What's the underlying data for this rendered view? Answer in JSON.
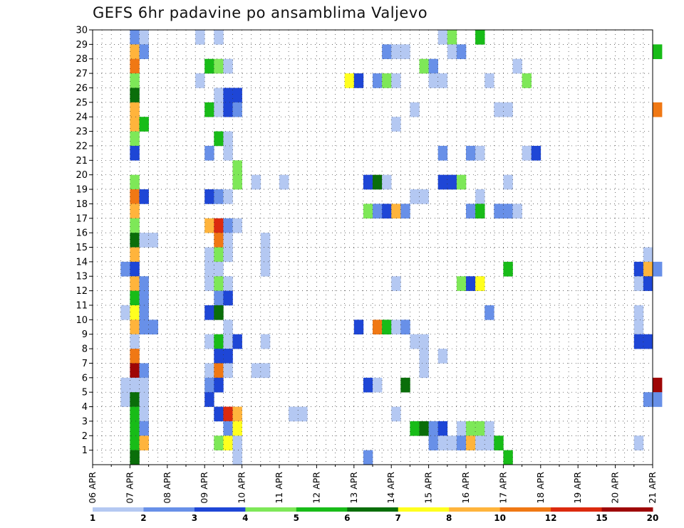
{
  "chart_data": {
    "type": "heatmap",
    "title": "GEFS 6hr padavine po ansamblima Valjevo",
    "x_tick_labels": [
      "06 APR",
      "07 APR",
      "08 APR",
      "09 APR",
      "10 APR",
      "11 APR",
      "12 APR",
      "13 APR",
      "14 APR",
      "15 APR",
      "16 APR",
      "17 APR",
      "18 APR",
      "19 APR",
      "20 APR",
      "21 APR"
    ],
    "y_tick_labels": [
      "1",
      "2",
      "3",
      "4",
      "5",
      "6",
      "7",
      "8",
      "9",
      "10",
      "11",
      "12",
      "13",
      "14",
      "15",
      "16",
      "17",
      "18",
      "19",
      "20",
      "21",
      "22",
      "23",
      "24",
      "25",
      "26",
      "27",
      "28",
      "29",
      "30"
    ],
    "y_range": [
      0,
      30
    ],
    "x_range": [
      0,
      60
    ],
    "grid": true,
    "colorbar": {
      "labels": [
        "1",
        "2",
        "3",
        "4",
        "5",
        "6",
        "7",
        "8",
        "10",
        "12",
        "15",
        "20"
      ],
      "colors": [
        "#b4c8f2",
        "#6890e8",
        "#1e46d6",
        "#7ee858",
        "#18bc18",
        "#0a6e0a",
        "#ffff1e",
        "#ffb43c",
        "#f07814",
        "#dc2a0e",
        "#9e0606"
      ]
    },
    "cells": [
      [
        4,
        30,
        1
      ],
      [
        5,
        30,
        0
      ],
      [
        11,
        30,
        0
      ],
      [
        13,
        30,
        0
      ],
      [
        37,
        30,
        0
      ],
      [
        38,
        30,
        3
      ],
      [
        41,
        30,
        4
      ],
      [
        4,
        29,
        7
      ],
      [
        5,
        29,
        1
      ],
      [
        31,
        29,
        1
      ],
      [
        32,
        29,
        0
      ],
      [
        33,
        29,
        0
      ],
      [
        38,
        29,
        0
      ],
      [
        39,
        29,
        1
      ],
      [
        60,
        29,
        4
      ],
      [
        4,
        28,
        8
      ],
      [
        12,
        28,
        4
      ],
      [
        13,
        28,
        3
      ],
      [
        14,
        28,
        0
      ],
      [
        35,
        28,
        3
      ],
      [
        36,
        28,
        1
      ],
      [
        45,
        28,
        0
      ],
      [
        4,
        27,
        3
      ],
      [
        11,
        27,
        0
      ],
      [
        27,
        27,
        6
      ],
      [
        28,
        27,
        2
      ],
      [
        30,
        27,
        1
      ],
      [
        31,
        27,
        3
      ],
      [
        32,
        27,
        0
      ],
      [
        36,
        27,
        0
      ],
      [
        37,
        27,
        0
      ],
      [
        42,
        27,
        0
      ],
      [
        46,
        27,
        3
      ],
      [
        4,
        26,
        5
      ],
      [
        13,
        26,
        0
      ],
      [
        14,
        26,
        2
      ],
      [
        15,
        26,
        2
      ],
      [
        4,
        25,
        7
      ],
      [
        12,
        25,
        4
      ],
      [
        13,
        25,
        0
      ],
      [
        14,
        25,
        2
      ],
      [
        15,
        25,
        1
      ],
      [
        34,
        25,
        0
      ],
      [
        43,
        25,
        0
      ],
      [
        44,
        25,
        0
      ],
      [
        60,
        25,
        8
      ],
      [
        4,
        24,
        7
      ],
      [
        5,
        24,
        4
      ],
      [
        32,
        24,
        0
      ],
      [
        4,
        23,
        3
      ],
      [
        13,
        23,
        4
      ],
      [
        14,
        23,
        0
      ],
      [
        4,
        22,
        2
      ],
      [
        12,
        22,
        1
      ],
      [
        14,
        22,
        0
      ],
      [
        37,
        22,
        1
      ],
      [
        40,
        22,
        1
      ],
      [
        41,
        22,
        0
      ],
      [
        46,
        22,
        0
      ],
      [
        47,
        22,
        2
      ],
      [
        15,
        21,
        3
      ],
      [
        4,
        20,
        3
      ],
      [
        15,
        20,
        3
      ],
      [
        17,
        20,
        0
      ],
      [
        20,
        20,
        0
      ],
      [
        29,
        20,
        2
      ],
      [
        30,
        20,
        5
      ],
      [
        31,
        20,
        0
      ],
      [
        37,
        20,
        2
      ],
      [
        38,
        20,
        2
      ],
      [
        39,
        20,
        3
      ],
      [
        44,
        20,
        0
      ],
      [
        4,
        19,
        8
      ],
      [
        5,
        19,
        2
      ],
      [
        12,
        19,
        2
      ],
      [
        13,
        19,
        1
      ],
      [
        14,
        19,
        0
      ],
      [
        34,
        19,
        0
      ],
      [
        35,
        19,
        0
      ],
      [
        41,
        19,
        0
      ],
      [
        4,
        18,
        7
      ],
      [
        29,
        18,
        3
      ],
      [
        30,
        18,
        1
      ],
      [
        31,
        18,
        2
      ],
      [
        32,
        18,
        7
      ],
      [
        33,
        18,
        1
      ],
      [
        40,
        18,
        1
      ],
      [
        41,
        18,
        4
      ],
      [
        43,
        18,
        1
      ],
      [
        44,
        18,
        1
      ],
      [
        45,
        18,
        0
      ],
      [
        4,
        17,
        3
      ],
      [
        12,
        17,
        7
      ],
      [
        13,
        17,
        9
      ],
      [
        14,
        17,
        1
      ],
      [
        15,
        17,
        0
      ],
      [
        4,
        16,
        5
      ],
      [
        5,
        16,
        0
      ],
      [
        6,
        16,
        0
      ],
      [
        13,
        16,
        8
      ],
      [
        14,
        16,
        0
      ],
      [
        18,
        16,
        0
      ],
      [
        4,
        15,
        7
      ],
      [
        12,
        15,
        0
      ],
      [
        13,
        15,
        3
      ],
      [
        14,
        15,
        0
      ],
      [
        18,
        15,
        0
      ],
      [
        59,
        15,
        0
      ],
      [
        3,
        14,
        1
      ],
      [
        4,
        14,
        2
      ],
      [
        12,
        14,
        0
      ],
      [
        13,
        14,
        0
      ],
      [
        18,
        14,
        0
      ],
      [
        44,
        14,
        4
      ],
      [
        58,
        14,
        2
      ],
      [
        59,
        14,
        7
      ],
      [
        60,
        14,
        1
      ],
      [
        4,
        13,
        7
      ],
      [
        5,
        13,
        1
      ],
      [
        12,
        13,
        0
      ],
      [
        13,
        13,
        3
      ],
      [
        14,
        13,
        0
      ],
      [
        32,
        13,
        0
      ],
      [
        39,
        13,
        3
      ],
      [
        40,
        13,
        2
      ],
      [
        41,
        13,
        6
      ],
      [
        58,
        13,
        0
      ],
      [
        59,
        13,
        2
      ],
      [
        4,
        12,
        4
      ],
      [
        5,
        12,
        1
      ],
      [
        13,
        12,
        1
      ],
      [
        14,
        12,
        2
      ],
      [
        3,
        11,
        0
      ],
      [
        4,
        11,
        6
      ],
      [
        5,
        11,
        1
      ],
      [
        12,
        11,
        2
      ],
      [
        13,
        11,
        5
      ],
      [
        42,
        11,
        1
      ],
      [
        58,
        11,
        0
      ],
      [
        4,
        10,
        7
      ],
      [
        5,
        10,
        1
      ],
      [
        6,
        10,
        1
      ],
      [
        14,
        10,
        0
      ],
      [
        28,
        10,
        2
      ],
      [
        30,
        10,
        8
      ],
      [
        31,
        10,
        4
      ],
      [
        32,
        10,
        0
      ],
      [
        33,
        10,
        1
      ],
      [
        58,
        10,
        0
      ],
      [
        4,
        9,
        0
      ],
      [
        12,
        9,
        0
      ],
      [
        13,
        9,
        4
      ],
      [
        14,
        9,
        0
      ],
      [
        15,
        9,
        2
      ],
      [
        18,
        9,
        0
      ],
      [
        34,
        9,
        0
      ],
      [
        35,
        9,
        0
      ],
      [
        58,
        9,
        2
      ],
      [
        59,
        9,
        2
      ],
      [
        4,
        8,
        8
      ],
      [
        13,
        8,
        2
      ],
      [
        14,
        8,
        2
      ],
      [
        35,
        8,
        0
      ],
      [
        37,
        8,
        0
      ],
      [
        4,
        7,
        10
      ],
      [
        5,
        7,
        1
      ],
      [
        12,
        7,
        0
      ],
      [
        13,
        7,
        8
      ],
      [
        14,
        7,
        0
      ],
      [
        17,
        7,
        0
      ],
      [
        18,
        7,
        0
      ],
      [
        35,
        7,
        0
      ],
      [
        3,
        6,
        0
      ],
      [
        4,
        6,
        0
      ],
      [
        5,
        6,
        0
      ],
      [
        12,
        6,
        1
      ],
      [
        13,
        6,
        2
      ],
      [
        29,
        6,
        2
      ],
      [
        30,
        6,
        0
      ],
      [
        33,
        6,
        5
      ],
      [
        60,
        6,
        10
      ],
      [
        3,
        5,
        0
      ],
      [
        4,
        5,
        5
      ],
      [
        5,
        5,
        0
      ],
      [
        12,
        5,
        2
      ],
      [
        59,
        5,
        1
      ],
      [
        60,
        5,
        1
      ],
      [
        4,
        4,
        4
      ],
      [
        5,
        4,
        0
      ],
      [
        13,
        4,
        2
      ],
      [
        14,
        4,
        9
      ],
      [
        15,
        4,
        7
      ],
      [
        21,
        4,
        0
      ],
      [
        22,
        4,
        0
      ],
      [
        32,
        4,
        0
      ],
      [
        4,
        3,
        4
      ],
      [
        5,
        3,
        1
      ],
      [
        14,
        3,
        1
      ],
      [
        15,
        3,
        6
      ],
      [
        34,
        3,
        4
      ],
      [
        35,
        3,
        5
      ],
      [
        36,
        3,
        1
      ],
      [
        37,
        3,
        2
      ],
      [
        39,
        3,
        0
      ],
      [
        40,
        3,
        3
      ],
      [
        41,
        3,
        3
      ],
      [
        42,
        3,
        0
      ],
      [
        4,
        2,
        4
      ],
      [
        5,
        2,
        7
      ],
      [
        13,
        2,
        3
      ],
      [
        14,
        2,
        6
      ],
      [
        15,
        2,
        0
      ],
      [
        36,
        2,
        1
      ],
      [
        37,
        2,
        0
      ],
      [
        38,
        2,
        0
      ],
      [
        39,
        2,
        1
      ],
      [
        40,
        2,
        7
      ],
      [
        41,
        2,
        0
      ],
      [
        42,
        2,
        0
      ],
      [
        43,
        2,
        4
      ],
      [
        58,
        2,
        0
      ],
      [
        4,
        1,
        5
      ],
      [
        15,
        1,
        0
      ],
      [
        29,
        1,
        1
      ],
      [
        44,
        1,
        4
      ]
    ]
  }
}
